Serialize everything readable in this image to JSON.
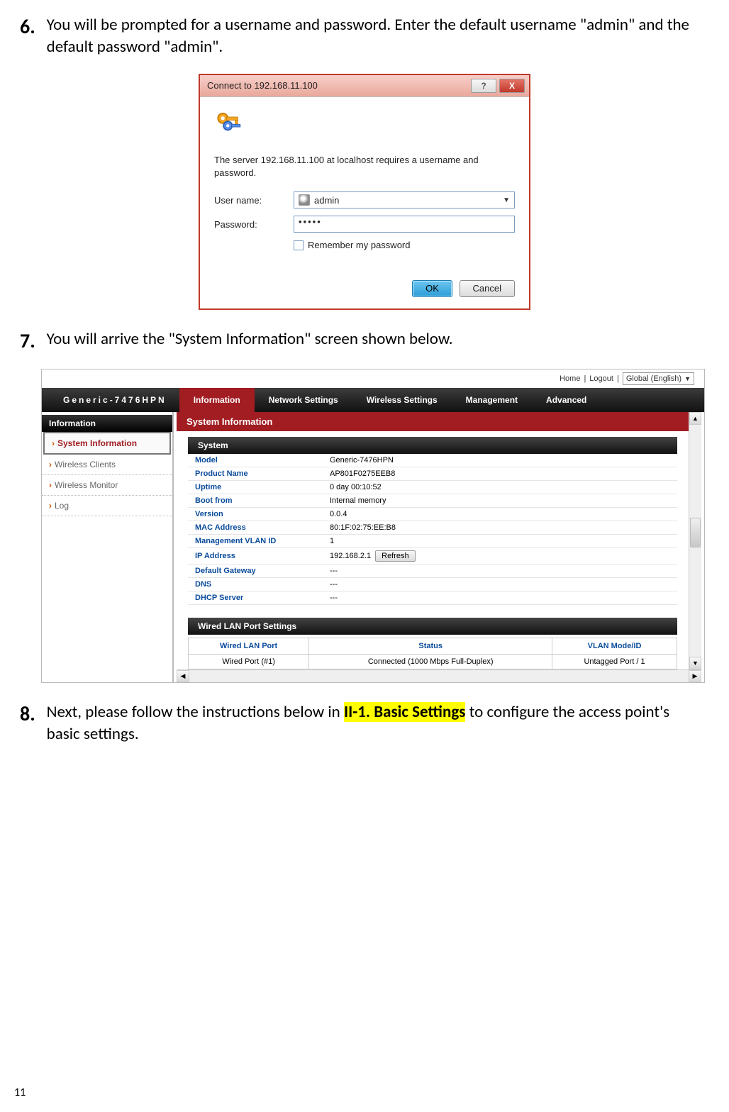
{
  "step6": {
    "num": "6.",
    "text": "You will be prompted for a username and password. Enter the default username \"admin\" and the default password \"admin\"."
  },
  "dialog": {
    "title": "Connect to 192.168.11.100",
    "help": "?",
    "close": "X",
    "msg": "The server 192.168.11.100 at localhost requires a username and password.",
    "username_label": "User name:",
    "username_value": "admin",
    "password_label": "Password:",
    "password_value": "•••••",
    "remember": "Remember my password",
    "ok": "OK",
    "cancel": "Cancel"
  },
  "step7": {
    "num": "7.",
    "text": "You will arrive the \"System Information\" screen shown below."
  },
  "admin": {
    "top": {
      "home": "Home",
      "logout": "Logout",
      "lang": "Global (English)"
    },
    "brand": "Generic-7476HPN",
    "tabs": [
      "Information",
      "Network Settings",
      "Wireless Settings",
      "Management",
      "Advanced"
    ],
    "active_tab": 0,
    "sidebar": {
      "header": "Information",
      "items": [
        "System Information",
        "Wireless Clients",
        "Wireless Monitor",
        "Log"
      ],
      "active": 0
    },
    "section_title": "System Information",
    "panel_system": {
      "title": "System",
      "rows": [
        {
          "k": "Model",
          "v": "Generic-7476HPN"
        },
        {
          "k": "Product Name",
          "v": "AP801F0275EEB8"
        },
        {
          "k": "Uptime",
          "v": " 0 day 00:10:52"
        },
        {
          "k": "Boot from",
          "v": "Internal memory"
        },
        {
          "k": "Version",
          "v": "0.0.4"
        },
        {
          "k": "MAC Address",
          "v": "80:1F:02:75:EE:B8"
        },
        {
          "k": "Management VLAN ID",
          "v": "1"
        },
        {
          "k": "IP Address",
          "v": "192.168.2.1",
          "refresh": true
        },
        {
          "k": "Default Gateway",
          "v": "---"
        },
        {
          "k": "DNS",
          "v": "---"
        },
        {
          "k": "DHCP Server",
          "v": "---"
        }
      ],
      "refresh_label": "Refresh"
    },
    "panel_wired": {
      "title": "Wired LAN Port Settings",
      "headers": [
        "Wired LAN Port",
        "Status",
        "VLAN Mode/ID"
      ],
      "row": [
        "Wired Port (#1)",
        "Connected (1000 Mbps Full-Duplex)",
        "Untagged Port  /   1"
      ]
    }
  },
  "step8": {
    "num": "8.",
    "pre": "Next, please follow the instructions below in ",
    "hl": "II-1. Basic Settings",
    "post": " to configure the access point's basic settings."
  },
  "page_number": "11"
}
